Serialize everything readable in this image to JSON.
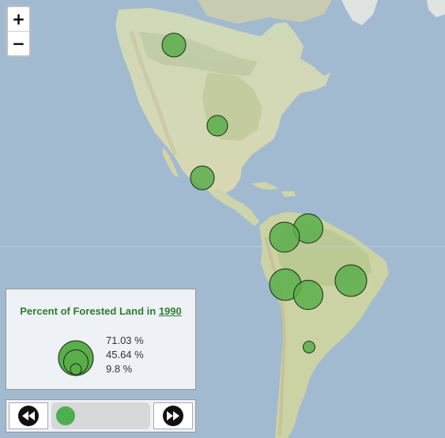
{
  "zoom": {
    "in_label": "+",
    "out_label": "−"
  },
  "legend": {
    "title_prefix": "Percent of Forested Land in",
    "year": "1990",
    "entries": [
      "71.03 %",
      "45.64 %",
      "9.8 %"
    ],
    "entry_values": [
      71.03,
      45.64,
      9.8
    ]
  },
  "playback": {
    "back_icon": "rewind-icon",
    "forward_icon": "fast-forward-icon",
    "slider_position": 0
  },
  "colors": {
    "symbol_fill": "#5aae4a",
    "symbol_stroke": "#1a2a18",
    "legend_title": "#2e7d32",
    "slider_handle": "#4caf50"
  },
  "symbols": [
    {
      "location": "Northwestern Canada"
    },
    {
      "location": "Central United States"
    },
    {
      "location": "Eastern Mexico"
    },
    {
      "location": "Venezuela"
    },
    {
      "location": "Colombia"
    },
    {
      "location": "Eastern Brazil"
    },
    {
      "location": "Peru"
    },
    {
      "location": "Bolivia"
    },
    {
      "location": "Argentina"
    }
  ]
}
